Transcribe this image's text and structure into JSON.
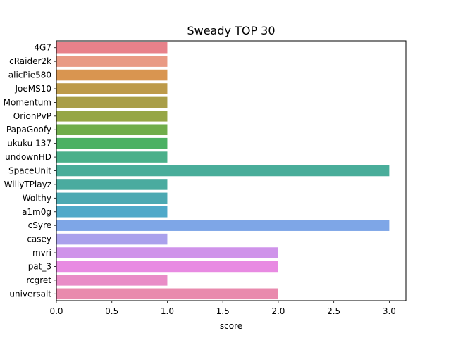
{
  "chart_data": {
    "type": "bar",
    "orientation": "horizontal",
    "title": "Sweady TOP 30",
    "xlabel": "score",
    "ylabel": "",
    "xlim": [
      0,
      3.15
    ],
    "xticks": [
      "0.0",
      "0.5",
      "1.0",
      "1.5",
      "2.0",
      "2.5",
      "3.0"
    ],
    "xtick_values": [
      0,
      0.5,
      1.0,
      1.5,
      2.0,
      2.5,
      3.0
    ],
    "grid": false,
    "categories": [
      "4G7",
      "cRaider2k",
      "alicPie580",
      "JoeMS10",
      "Momentum",
      "OrionPvP",
      "PapaGoofy",
      "ukuku 137",
      "undownHD",
      "SpaceUnit",
      "WillyTPlayz",
      "Wolthy",
      "a1m0g",
      "cSyre",
      "casey",
      "mvri",
      "pat_3",
      "rcgret",
      "universalt"
    ],
    "values": [
      1,
      1,
      1,
      1,
      1,
      1,
      1,
      1,
      1,
      3,
      1,
      1,
      1,
      3,
      1,
      2,
      2,
      1,
      2
    ],
    "colors": [
      "#e8818a",
      "#e99a84",
      "#d99550",
      "#bd9a49",
      "#a99e47",
      "#96a645",
      "#70ad4b",
      "#4bb163",
      "#4ab08a",
      "#49ad9a",
      "#4aab9f",
      "#4ca9b2",
      "#4fa9c9",
      "#7ea6e7",
      "#aaa1ec",
      "#cf93ea",
      "#e88ae2",
      "#e98cc7",
      "#e98aad"
    ]
  }
}
